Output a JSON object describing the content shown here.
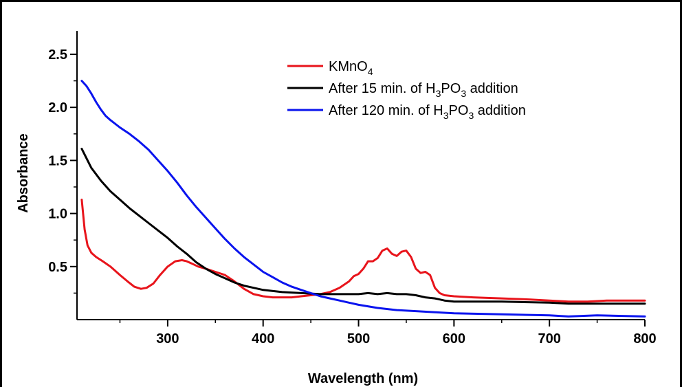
{
  "chart_data": {
    "type": "line",
    "xlabel": "Wavelength (nm)",
    "ylabel": "Absorbance",
    "xlim": [
      205,
      800
    ],
    "ylim": [
      0.0,
      2.72
    ],
    "xticks": [
      300,
      400,
      500,
      600,
      700,
      800
    ],
    "xtick_labels": [
      "300",
      "400",
      "500",
      "600",
      "700",
      "800"
    ],
    "yticks": [
      0.5,
      1.0,
      1.5,
      2.0,
      2.5
    ],
    "ytick_labels": [
      "0.5",
      "1.0",
      "1.5",
      "2.0",
      "2.5"
    ],
    "grid": false,
    "legend_position": "top-right",
    "series": [
      {
        "name": "KMnO4",
        "legend_parts": [
          {
            "t": "KMnO",
            "sub": false
          },
          {
            "t": "4",
            "sub": true
          }
        ],
        "color": "#e8141b",
        "x": [
          210,
          213,
          216,
          220,
          225,
          232,
          240,
          250,
          258,
          265,
          272,
          278,
          285,
          292,
          300,
          308,
          315,
          320,
          325,
          332,
          340,
          350,
          360,
          370,
          380,
          390,
          400,
          410,
          420,
          430,
          440,
          450,
          460,
          470,
          480,
          490,
          495,
          500,
          505,
          510,
          515,
          520,
          525,
          530,
          535,
          540,
          545,
          550,
          555,
          560,
          565,
          570,
          575,
          580,
          585,
          590,
          600,
          620,
          650,
          680,
          700,
          720,
          740,
          760,
          780,
          800
        ],
        "y": [
          1.13,
          0.85,
          0.7,
          0.63,
          0.59,
          0.55,
          0.5,
          0.42,
          0.36,
          0.31,
          0.29,
          0.3,
          0.34,
          0.42,
          0.5,
          0.55,
          0.56,
          0.55,
          0.53,
          0.5,
          0.48,
          0.45,
          0.42,
          0.36,
          0.29,
          0.24,
          0.22,
          0.21,
          0.21,
          0.21,
          0.22,
          0.23,
          0.24,
          0.26,
          0.3,
          0.36,
          0.41,
          0.43,
          0.48,
          0.55,
          0.55,
          0.58,
          0.65,
          0.67,
          0.62,
          0.6,
          0.64,
          0.65,
          0.59,
          0.48,
          0.44,
          0.45,
          0.42,
          0.3,
          0.25,
          0.23,
          0.22,
          0.21,
          0.2,
          0.19,
          0.18,
          0.17,
          0.17,
          0.18,
          0.18,
          0.18
        ]
      },
      {
        "name": "After 15 min. of H3PO3 addition",
        "legend_parts": [
          {
            "t": "After 15 min. of H",
            "sub": false
          },
          {
            "t": "3",
            "sub": true
          },
          {
            "t": "PO",
            "sub": false
          },
          {
            "t": "3",
            "sub": true
          },
          {
            "t": " addition",
            "sub": false
          }
        ],
        "color": "#000000",
        "x": [
          210,
          220,
          230,
          240,
          250,
          260,
          270,
          280,
          290,
          300,
          310,
          320,
          330,
          340,
          350,
          360,
          370,
          380,
          390,
          400,
          420,
          440,
          460,
          480,
          500,
          510,
          520,
          530,
          540,
          550,
          560,
          570,
          580,
          590,
          600,
          650,
          700,
          720,
          750,
          800
        ],
        "y": [
          1.61,
          1.43,
          1.31,
          1.21,
          1.13,
          1.05,
          0.98,
          0.91,
          0.84,
          0.77,
          0.69,
          0.62,
          0.54,
          0.48,
          0.43,
          0.39,
          0.35,
          0.32,
          0.3,
          0.28,
          0.26,
          0.25,
          0.24,
          0.24,
          0.24,
          0.25,
          0.24,
          0.25,
          0.24,
          0.24,
          0.23,
          0.21,
          0.2,
          0.18,
          0.17,
          0.17,
          0.16,
          0.15,
          0.15,
          0.15
        ]
      },
      {
        "name": "After 120 min. of H3PO3 addition",
        "legend_parts": [
          {
            "t": "After 120 min. of H",
            "sub": false
          },
          {
            "t": "3",
            "sub": true
          },
          {
            "t": "PO",
            "sub": false
          },
          {
            "t": "3",
            "sub": true
          },
          {
            "t": " addition",
            "sub": false
          }
        ],
        "color": "#0a14ee",
        "x": [
          210,
          215,
          220,
          225,
          230,
          235,
          240,
          250,
          260,
          270,
          280,
          290,
          300,
          310,
          320,
          330,
          340,
          350,
          360,
          370,
          380,
          390,
          400,
          410,
          420,
          430,
          440,
          450,
          460,
          470,
          480,
          490,
          500,
          520,
          540,
          560,
          580,
          600,
          650,
          700,
          720,
          750,
          800
        ],
        "y": [
          2.25,
          2.2,
          2.13,
          2.05,
          1.98,
          1.92,
          1.88,
          1.81,
          1.75,
          1.68,
          1.6,
          1.5,
          1.4,
          1.29,
          1.17,
          1.06,
          0.96,
          0.86,
          0.76,
          0.67,
          0.59,
          0.52,
          0.45,
          0.4,
          0.35,
          0.31,
          0.28,
          0.25,
          0.22,
          0.2,
          0.18,
          0.16,
          0.14,
          0.11,
          0.09,
          0.08,
          0.07,
          0.06,
          0.05,
          0.04,
          0.03,
          0.04,
          0.03
        ]
      }
    ]
  }
}
